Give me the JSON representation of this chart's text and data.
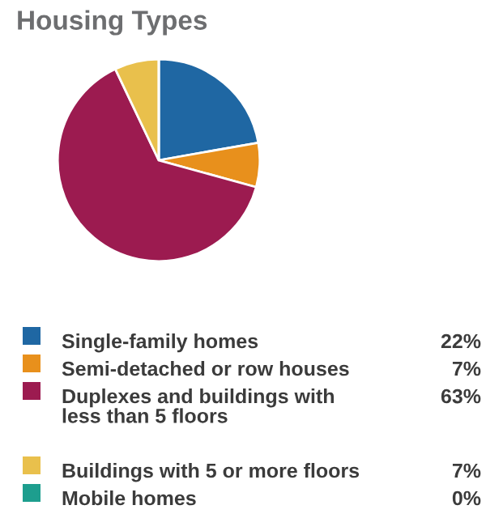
{
  "chart_data": {
    "type": "pie",
    "title": "Housing Types",
    "categories": [
      "Single-family homes",
      "Semi-detached or row houses",
      "Duplexes and buildings with\nless than 5 floors",
      "Buildings with 5 or more floors",
      "Mobile homes"
    ],
    "values": [
      22,
      7,
      63,
      7,
      0
    ],
    "value_labels": [
      "22%",
      "7%",
      "63%",
      "7%",
      "0%"
    ],
    "colors": [
      "#1f67a3",
      "#e8901c",
      "#9c1b50",
      "#e9c04c",
      "#1d9e8e"
    ],
    "legend": "bottom"
  }
}
